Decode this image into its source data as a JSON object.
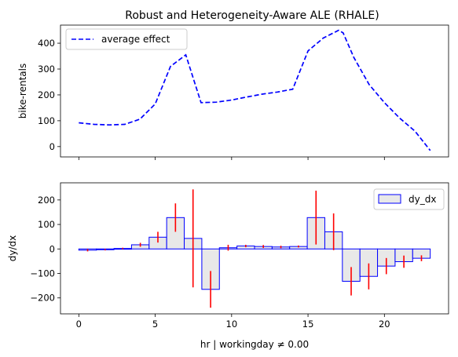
{
  "chart_data": [
    {
      "type": "line",
      "title": "Robust and Heterogeneity-Aware ALE (RHALE)",
      "xlabel": "",
      "ylabel": "bike-rentals",
      "xlim": [
        -1.2,
        24.2
      ],
      "ylim": [
        -40,
        470
      ],
      "yticks": [
        0,
        100,
        200,
        300,
        400
      ],
      "xticks": [
        0,
        5,
        10,
        15,
        20
      ],
      "show_xtick_labels": false,
      "grid": false,
      "legend": "top-left",
      "series": [
        {
          "name": "average effect",
          "style": "dashed",
          "color": "#0000ff",
          "x": [
            0,
            1,
            2,
            3,
            4,
            5,
            6,
            7,
            8,
            9,
            10,
            11,
            12,
            13,
            14,
            15,
            16,
            17,
            17.3,
            18,
            19,
            20,
            21,
            22,
            23
          ],
          "y": [
            92,
            86,
            84,
            86,
            106,
            165,
            310,
            355,
            170,
            172,
            180,
            192,
            203,
            211,
            222,
            370,
            420,
            450,
            440,
            345,
            240,
            170,
            110,
            60,
            -15
          ]
        }
      ]
    },
    {
      "type": "bar",
      "title": "",
      "xlabel": "hr | workingday ≠ 0.00",
      "ylabel": "dy/dx",
      "xlim": [
        -1.2,
        24.2
      ],
      "ylim": [
        -265,
        270
      ],
      "yticks": [
        -200,
        -100,
        0,
        100,
        200
      ],
      "xticks": [
        0,
        5,
        10,
        15,
        20
      ],
      "grid": false,
      "legend": "top-right",
      "bar_color": "#e8e8e8",
      "edge_color": "#0000ff",
      "error_color": "#ff0000",
      "series": [
        {
          "name": "dy_dx",
          "bins": [
            {
              "x0": 0.0,
              "x1": 1.15,
              "value": -5,
              "err": 5
            },
            {
              "x0": 1.15,
              "x1": 2.3,
              "value": -3,
              "err": 3
            },
            {
              "x0": 2.3,
              "x1": 3.45,
              "value": 2,
              "err": 3
            },
            {
              "x0": 3.45,
              "x1": 4.6,
              "value": 17,
              "err": 8
            },
            {
              "x0": 4.6,
              "x1": 5.75,
              "value": 48,
              "err": 22
            },
            {
              "x0": 5.75,
              "x1": 6.9,
              "value": 128,
              "err": 58
            },
            {
              "x0": 6.9,
              "x1": 8.05,
              "value": 43,
              "err": 200
            },
            {
              "x0": 8.05,
              "x1": 9.2,
              "value": -165,
              "err": 75
            },
            {
              "x0": 9.2,
              "x1": 10.35,
              "value": 5,
              "err": 12
            },
            {
              "x0": 10.35,
              "x1": 11.5,
              "value": 12,
              "err": 5
            },
            {
              "x0": 11.5,
              "x1": 12.65,
              "value": 10,
              "err": 6
            },
            {
              "x0": 12.65,
              "x1": 13.8,
              "value": 8,
              "err": 5
            },
            {
              "x0": 13.8,
              "x1": 14.95,
              "value": 10,
              "err": 4
            },
            {
              "x0": 14.95,
              "x1": 16.1,
              "value": 128,
              "err": 110
            },
            {
              "x0": 16.1,
              "x1": 17.25,
              "value": 70,
              "err": 75
            },
            {
              "x0": 17.25,
              "x1": 18.4,
              "value": -132,
              "err": 58
            },
            {
              "x0": 18.4,
              "x1": 19.55,
              "value": -112,
              "err": 53
            },
            {
              "x0": 19.55,
              "x1": 20.7,
              "value": -70,
              "err": 33
            },
            {
              "x0": 20.7,
              "x1": 21.85,
              "value": -52,
              "err": 25
            },
            {
              "x0": 21.85,
              "x1": 23.0,
              "value": -38,
              "err": 12
            }
          ]
        }
      ]
    }
  ]
}
